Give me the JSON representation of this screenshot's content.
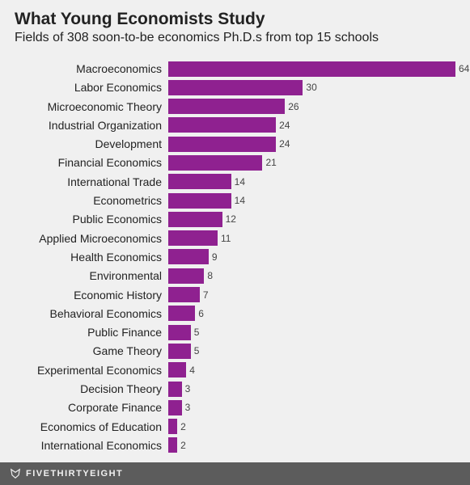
{
  "header": {
    "title": "What Young Economists Study",
    "subtitle": "Fields of 308 soon-to-be economics Ph.D.s from top 15 schools"
  },
  "chart": {
    "type": "bar",
    "orientation": "horizontal",
    "bar_color": "#8f2190",
    "background_color": "#f0f0f0",
    "label_color": "#222222",
    "value_color": "#444444",
    "label_fontsize": 14,
    "value_fontsize": 12,
    "max_value": 64,
    "categories": [
      "Macroeconomics",
      "Labor Economics",
      "Microeconomic Theory",
      "Industrial Organization",
      "Development",
      "Financial Economics",
      "International Trade",
      "Econometrics",
      "Public Economics",
      "Applied Microeconomics",
      "Health Economics",
      "Environmental",
      "Economic History",
      "Behavioral Economics",
      "Public Finance",
      "Game Theory",
      "Experimental Economics",
      "Decision Theory",
      "Corporate Finance",
      "Economics of Education",
      "International Economics"
    ],
    "values": [
      64,
      30,
      26,
      24,
      24,
      21,
      14,
      14,
      12,
      11,
      9,
      8,
      7,
      6,
      5,
      5,
      4,
      3,
      3,
      2,
      2
    ]
  },
  "footer": {
    "brand": "FIVETHIRTYEIGHT",
    "background_color": "#5c5c5c",
    "text_color": "#f0f0f0"
  }
}
